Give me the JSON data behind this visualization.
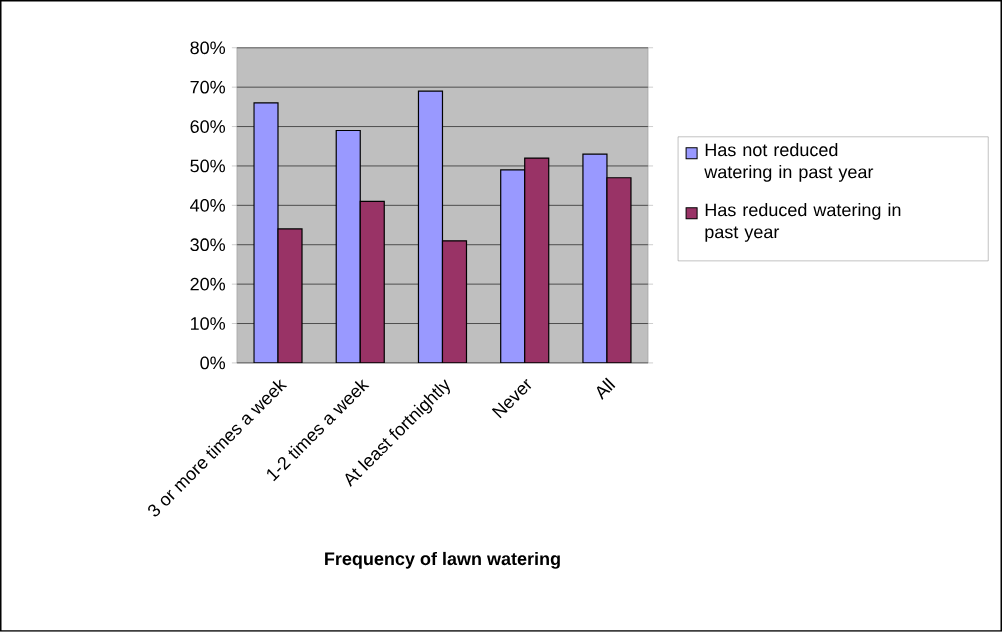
{
  "chart_data": {
    "type": "bar",
    "xlabel": "Frequency of lawn watering",
    "categories": [
      "3 or more times a week",
      "1-2 times a week",
      "At least fortnightly",
      "Never",
      "All"
    ],
    "series": [
      {
        "name": "Has not reduced watering in past year",
        "color": "#9999ff",
        "values": [
          66,
          59,
          69,
          49,
          53
        ]
      },
      {
        "name": "Has reduced watering in past year",
        "color": "#993366",
        "values": [
          34,
          41,
          31,
          52,
          47
        ]
      }
    ],
    "ylim": [
      0,
      80
    ],
    "yticks": [
      {
        "value": 0,
        "label": "0%"
      },
      {
        "value": 10,
        "label": "10%"
      },
      {
        "value": 20,
        "label": "20%"
      },
      {
        "value": 30,
        "label": "30%"
      },
      {
        "value": 40,
        "label": "40%"
      },
      {
        "value": 50,
        "label": "50%"
      },
      {
        "value": 60,
        "label": "60%"
      },
      {
        "value": 70,
        "label": "70%"
      },
      {
        "value": 80,
        "label": "80%"
      }
    ],
    "grid": "y",
    "legend": "right"
  }
}
